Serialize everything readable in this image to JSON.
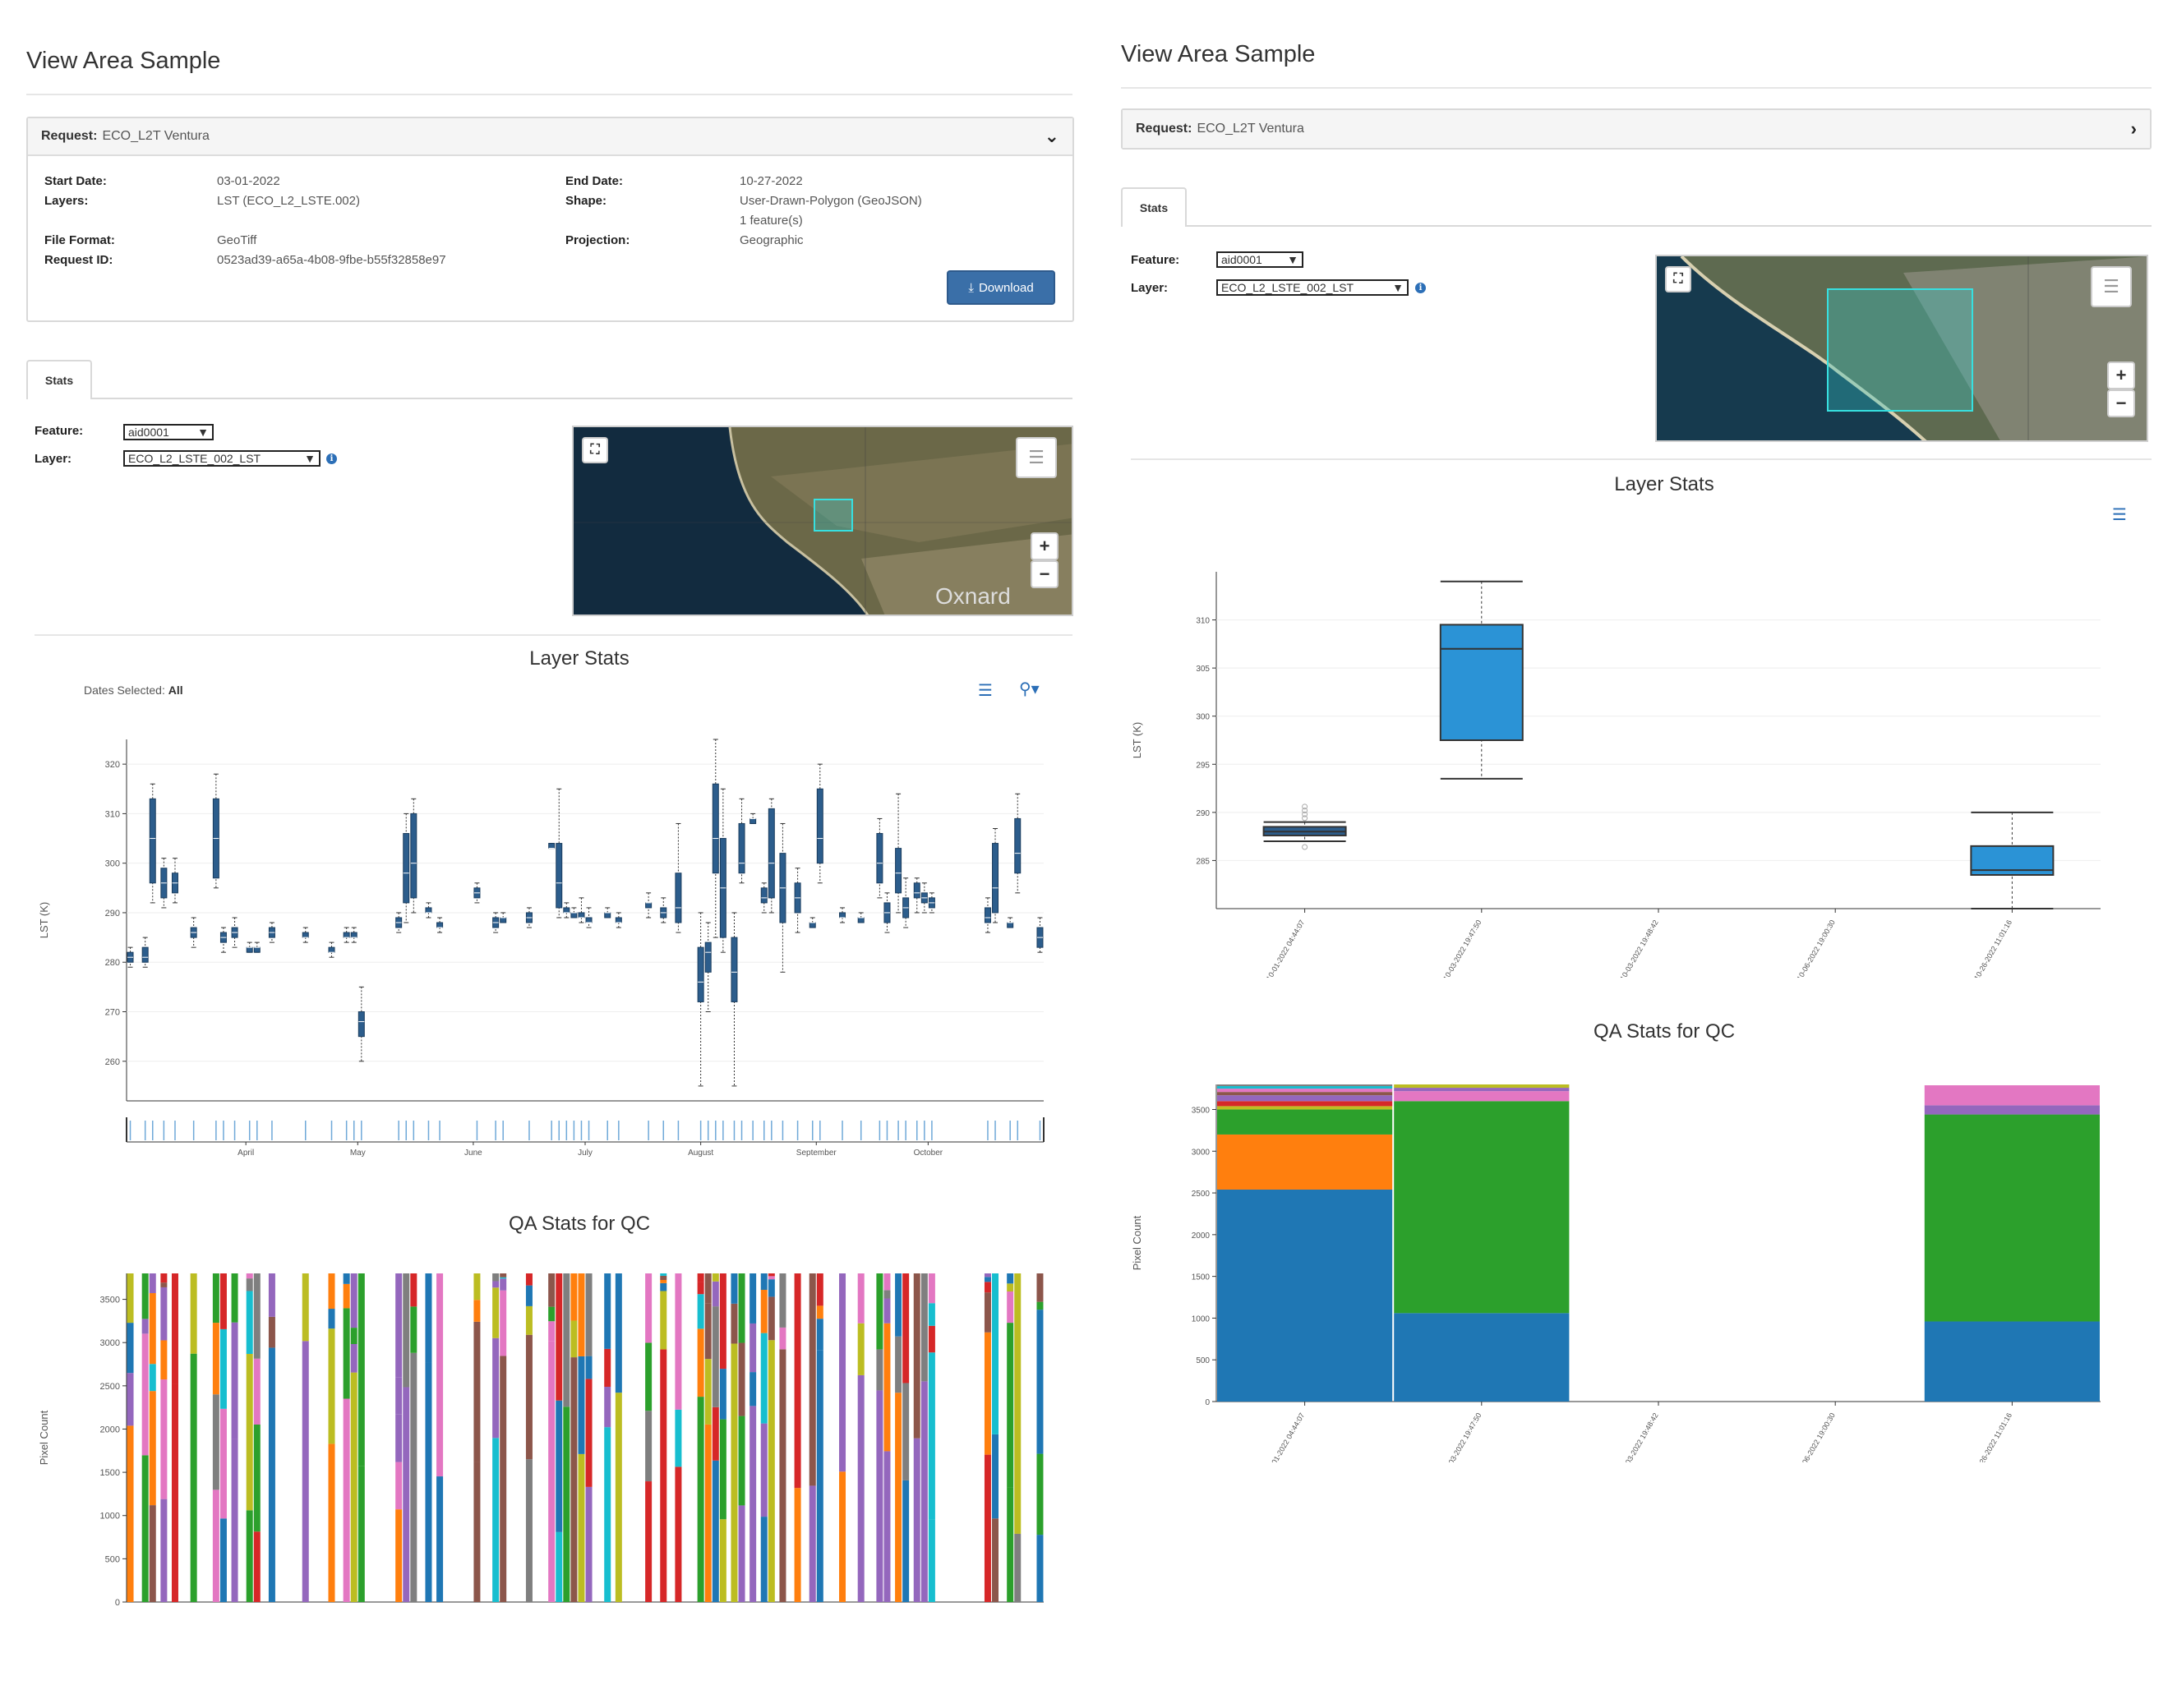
{
  "left": {
    "title": "View Area Sample",
    "request": {
      "label": "Request:",
      "name": "ECO_L2T Ventura",
      "start_date_label": "Start Date:",
      "start_date": "03-01-2022",
      "end_date_label": "End Date:",
      "end_date": "10-27-2022",
      "layers_label": "Layers:",
      "layers": "LST (ECO_L2_LSTE.002)",
      "shape_label": "Shape:",
      "shape": "User-Drawn-Polygon (GeoJSON)",
      "shape_features": "1 feature(s)",
      "file_format_label": "File Format:",
      "file_format": "GeoTiff",
      "projection_label": "Projection:",
      "projection": "Geographic",
      "request_id_label": "Request ID:",
      "request_id": "0523ad39-a65a-4b08-9fbe-b55f32858e97",
      "download_label": "Download"
    },
    "tab": "Stats",
    "feature_label": "Feature:",
    "feature_value": "aid0001",
    "layer_label": "Layer:",
    "layer_value": "ECO_L2_LSTE_002_LST",
    "map_place_label": "Oxnard",
    "dates_selected_label": "Dates Selected:",
    "dates_selected_value": "All"
  },
  "right": {
    "title": "View Area Sample",
    "request_label": "Request:",
    "request_name": "ECO_L2T Ventura",
    "tab": "Stats",
    "feature_label": "Feature:",
    "feature_value": "aid0001",
    "layer_label": "Layer:",
    "layer_value": "ECO_L2_LSTE_002_LST"
  },
  "colors": {
    "box_dark": "#2c5d8c",
    "box_light": "#2b93d6",
    "qa_palette": [
      "#1f77b4",
      "#ff7f0e",
      "#2ca02c",
      "#d62728",
      "#9467bd",
      "#8c564b",
      "#e377c2",
      "#7f7f7f",
      "#bcbd22",
      "#17becf"
    ]
  },
  "chart_data": [
    {
      "id": "left-layer-stats",
      "type": "box",
      "title": "Layer Stats",
      "ylabel": "LST (K)",
      "ylim": [
        252,
        325
      ],
      "yticks": [
        260,
        270,
        280,
        290,
        300,
        310,
        320
      ],
      "month_labels": [
        "April",
        "May",
        "June",
        "July",
        "August",
        "September",
        "October"
      ],
      "boxes": [
        {
          "x": "2022-03-01",
          "min": 279,
          "q1": 280,
          "med": 281,
          "q3": 282,
          "max": 283
        },
        {
          "x": "2022-03-05",
          "min": 279,
          "q1": 280,
          "med": 281,
          "q3": 283,
          "max": 285
        },
        {
          "x": "2022-03-07",
          "min": 292,
          "q1": 296,
          "med": 305,
          "q3": 313,
          "max": 316
        },
        {
          "x": "2022-03-10",
          "min": 291,
          "q1": 293,
          "med": 296,
          "q3": 299,
          "max": 301
        },
        {
          "x": "2022-03-13",
          "min": 292,
          "q1": 294,
          "med": 296,
          "q3": 298,
          "max": 301
        },
        {
          "x": "2022-03-18",
          "min": 283,
          "q1": 285,
          "med": 286,
          "q3": 287,
          "max": 289
        },
        {
          "x": "2022-03-24",
          "min": 295,
          "q1": 297,
          "med": 305,
          "q3": 313,
          "max": 318
        },
        {
          "x": "2022-03-26",
          "min": 282,
          "q1": 284,
          "med": 285,
          "q3": 286,
          "max": 287
        },
        {
          "x": "2022-03-29",
          "min": 283,
          "q1": 285,
          "med": 286,
          "q3": 287,
          "max": 289
        },
        {
          "x": "2022-04-02",
          "min": 282,
          "q1": 282,
          "med": 283,
          "q3": 283,
          "max": 284
        },
        {
          "x": "2022-04-04",
          "min": 282,
          "q1": 282,
          "med": 283,
          "q3": 283,
          "max": 284
        },
        {
          "x": "2022-04-08",
          "min": 284,
          "q1": 285,
          "med": 286,
          "q3": 287,
          "max": 288
        },
        {
          "x": "2022-04-17",
          "min": 284,
          "q1": 285,
          "med": 285,
          "q3": 286,
          "max": 287
        },
        {
          "x": "2022-04-24",
          "min": 281,
          "q1": 282,
          "med": 282,
          "q3": 283,
          "max": 284
        },
        {
          "x": "2022-04-28",
          "min": 284,
          "q1": 285,
          "med": 285,
          "q3": 286,
          "max": 287
        },
        {
          "x": "2022-04-30",
          "min": 284,
          "q1": 285,
          "med": 285,
          "q3": 286,
          "max": 287
        },
        {
          "x": "2022-05-02",
          "min": 260,
          "q1": 265,
          "med": 268,
          "q3": 270,
          "max": 275
        },
        {
          "x": "2022-05-12",
          "min": 286,
          "q1": 287,
          "med": 288,
          "q3": 289,
          "max": 290
        },
        {
          "x": "2022-05-14",
          "min": 288,
          "q1": 292,
          "med": 298,
          "q3": 306,
          "max": 310
        },
        {
          "x": "2022-05-16",
          "min": 290,
          "q1": 293,
          "med": 300,
          "q3": 310,
          "max": 313
        },
        {
          "x": "2022-05-20",
          "min": 289,
          "q1": 290,
          "med": 290,
          "q3": 291,
          "max": 292
        },
        {
          "x": "2022-05-23",
          "min": 286,
          "q1": 287,
          "med": 287,
          "q3": 288,
          "max": 289
        },
        {
          "x": "2022-06-02",
          "min": 292,
          "q1": 293,
          "med": 294,
          "q3": 295,
          "max": 296
        },
        {
          "x": "2022-06-07",
          "min": 286,
          "q1": 287,
          "med": 288,
          "q3": 289,
          "max": 290
        },
        {
          "x": "2022-06-09",
          "min": 288,
          "q1": 288,
          "med": 289,
          "q3": 289,
          "max": 290
        },
        {
          "x": "2022-06-16",
          "min": 287,
          "q1": 288,
          "med": 289,
          "q3": 290,
          "max": 291
        },
        {
          "x": "2022-06-22",
          "min": 303,
          "q1": 303,
          "med": 303,
          "q3": 304,
          "max": 304
        },
        {
          "x": "2022-06-24",
          "min": 289,
          "q1": 291,
          "med": 296,
          "q3": 304,
          "max": 315
        },
        {
          "x": "2022-06-26",
          "min": 289,
          "q1": 290,
          "med": 290,
          "q3": 291,
          "max": 292
        },
        {
          "x": "2022-06-28",
          "min": 289,
          "q1": 289,
          "med": 290,
          "q3": 290,
          "max": 291
        },
        {
          "x": "2022-06-30",
          "min": 288,
          "q1": 289,
          "med": 289,
          "q3": 290,
          "max": 293
        },
        {
          "x": "2022-07-02",
          "min": 287,
          "q1": 288,
          "med": 288,
          "q3": 289,
          "max": 291
        },
        {
          "x": "2022-07-07",
          "min": 289,
          "q1": 289,
          "med": 290,
          "q3": 290,
          "max": 291
        },
        {
          "x": "2022-07-10",
          "min": 287,
          "q1": 288,
          "med": 288,
          "q3": 289,
          "max": 290
        },
        {
          "x": "2022-07-18",
          "min": 289,
          "q1": 291,
          "med": 292,
          "q3": 292,
          "max": 294
        },
        {
          "x": "2022-07-22",
          "min": 288,
          "q1": 289,
          "med": 290,
          "q3": 291,
          "max": 293
        },
        {
          "x": "2022-07-26",
          "min": 286,
          "q1": 288,
          "med": 291,
          "q3": 298,
          "max": 308
        },
        {
          "x": "2022-08-01",
          "min": 255,
          "q1": 272,
          "med": 276,
          "q3": 283,
          "max": 290
        },
        {
          "x": "2022-08-03",
          "min": 270,
          "q1": 278,
          "med": 282,
          "q3": 284,
          "max": 288
        },
        {
          "x": "2022-08-05",
          "min": 285,
          "q1": 298,
          "med": 305,
          "q3": 316,
          "max": 325
        },
        {
          "x": "2022-08-07",
          "min": 282,
          "q1": 285,
          "med": 295,
          "q3": 305,
          "max": 315
        },
        {
          "x": "2022-08-10",
          "min": 255,
          "q1": 272,
          "med": 278,
          "q3": 285,
          "max": 290
        },
        {
          "x": "2022-08-12",
          "min": 296,
          "q1": 298,
          "med": 300,
          "q3": 308,
          "max": 313
        },
        {
          "x": "2022-08-15",
          "min": 308,
          "q1": 308,
          "med": 309,
          "q3": 309,
          "max": 310
        },
        {
          "x": "2022-08-18",
          "min": 290,
          "q1": 292,
          "med": 293,
          "q3": 295,
          "max": 296
        },
        {
          "x": "2022-08-20",
          "min": 290,
          "q1": 293,
          "med": 300,
          "q3": 311,
          "max": 313
        },
        {
          "x": "2022-08-23",
          "min": 278,
          "q1": 288,
          "med": 295,
          "q3": 302,
          "max": 308
        },
        {
          "x": "2022-08-27",
          "min": 286,
          "q1": 290,
          "med": 293,
          "q3": 296,
          "max": 299
        },
        {
          "x": "2022-08-31",
          "min": 287,
          "q1": 287,
          "med": 288,
          "q3": 288,
          "max": 289
        },
        {
          "x": "2022-09-02",
          "min": 296,
          "q1": 300,
          "med": 305,
          "q3": 315,
          "max": 320
        },
        {
          "x": "2022-09-08",
          "min": 288,
          "q1": 289,
          "med": 289,
          "q3": 290,
          "max": 291
        },
        {
          "x": "2022-09-13",
          "min": 288,
          "q1": 288,
          "med": 289,
          "q3": 289,
          "max": 290
        },
        {
          "x": "2022-09-18",
          "min": 293,
          "q1": 296,
          "med": 300,
          "q3": 306,
          "max": 309
        },
        {
          "x": "2022-09-20",
          "min": 286,
          "q1": 288,
          "med": 290,
          "q3": 292,
          "max": 294
        },
        {
          "x": "2022-09-23",
          "min": 290,
          "q1": 294,
          "med": 298,
          "q3": 303,
          "max": 314
        },
        {
          "x": "2022-09-25",
          "min": 287,
          "q1": 289,
          "med": 291,
          "q3": 293,
          "max": 297
        },
        {
          "x": "2022-09-28",
          "min": 290,
          "q1": 293,
          "med": 294,
          "q3": 296,
          "max": 297
        },
        {
          "x": "2022-09-30",
          "min": 290,
          "q1": 292,
          "med": 293,
          "q3": 294,
          "max": 296
        },
        {
          "x": "2022-10-02",
          "min": 290,
          "q1": 291,
          "med": 292,
          "q3": 293,
          "max": 294
        },
        {
          "x": "2022-10-17",
          "min": 286,
          "q1": 288,
          "med": 289,
          "q3": 291,
          "max": 293
        },
        {
          "x": "2022-10-19",
          "min": 288,
          "q1": 290,
          "med": 295,
          "q3": 304,
          "max": 307
        },
        {
          "x": "2022-10-23",
          "min": 287,
          "q1": 287,
          "med": 288,
          "q3": 288,
          "max": 289
        },
        {
          "x": "2022-10-25",
          "min": 294,
          "q1": 298,
          "med": 302,
          "q3": 309,
          "max": 314
        },
        {
          "x": "2022-10-31",
          "min": 282,
          "q1": 283,
          "med": 285,
          "q3": 287,
          "max": 289
        }
      ]
    },
    {
      "id": "left-qa-stats",
      "type": "stacked-bar",
      "title": "QA Stats for QC",
      "ylabel": "Pixel Count",
      "ylim": [
        0,
        3800
      ],
      "yticks": [
        0,
        500,
        1000,
        1500,
        2000,
        2500,
        3000,
        3500
      ],
      "total": 3800,
      "note": "one stacked bar per acquisition date (same dates as Layer Stats); categories drawn from qa_palette"
    },
    {
      "id": "right-layer-stats",
      "type": "box",
      "title": "Layer Stats",
      "ylabel": "LST (K)",
      "ylim": [
        280,
        315
      ],
      "yticks": [
        285,
        290,
        295,
        300,
        305,
        310
      ],
      "categories": [
        "10-01-2022 04:44:07",
        "10-03-2022 19:47:50",
        "10-03-2022 19:48:42",
        "10-06-2022 19:00:30",
        "10-26-2022 11:01:16"
      ],
      "boxes": [
        {
          "x": 0,
          "min": 287,
          "q1": 287.6,
          "med": 288,
          "q3": 288.5,
          "max": 289,
          "outliers": [
            289.4,
            289.8,
            290.2,
            290.6,
            286.4
          ]
        },
        {
          "x": 1,
          "min": 293.5,
          "q1": 297.5,
          "med": 307,
          "q3": 309.5,
          "max": 314
        },
        {
          "x": 4,
          "min": 280,
          "q1": 283.5,
          "med": 284,
          "q3": 286.5,
          "max": 290
        }
      ]
    },
    {
      "id": "right-qa-stats",
      "type": "stacked-bar",
      "title": "QA Stats for QC",
      "ylabel": "Pixel Count",
      "ylim": [
        0,
        3800
      ],
      "yticks": [
        0,
        500,
        1000,
        1500,
        2000,
        2500,
        3000,
        3500
      ],
      "categories": [
        "10-01-2022 04:44:07",
        "10-03-2022 19:47:50",
        "10-03-2022 19:48:42",
        "10-06-2022 19:00:30",
        "10-26-2022 11:01:16"
      ],
      "bars": [
        {
          "x": 0,
          "stack": [
            {
              "c": 0,
              "v": 2540
            },
            {
              "c": 1,
              "v": 660
            },
            {
              "c": 2,
              "v": 300
            },
            {
              "c": 8,
              "v": 40
            },
            {
              "c": 3,
              "v": 60
            },
            {
              "c": 4,
              "v": 70
            },
            {
              "c": 5,
              "v": 40
            },
            {
              "c": 6,
              "v": 40
            },
            {
              "c": 9,
              "v": 30
            },
            {
              "c": 7,
              "v": 20
            }
          ]
        },
        {
          "x": 1,
          "stack": [
            {
              "c": 0,
              "v": 1060
            },
            {
              "c": 2,
              "v": 2540
            },
            {
              "c": 6,
              "v": 120
            },
            {
              "c": 4,
              "v": 40
            },
            {
              "c": 8,
              "v": 40
            }
          ]
        },
        {
          "x": 4,
          "stack": [
            {
              "c": 0,
              "v": 960
            },
            {
              "c": 2,
              "v": 2480
            },
            {
              "c": 4,
              "v": 110
            },
            {
              "c": 6,
              "v": 240
            }
          ]
        }
      ]
    }
  ]
}
